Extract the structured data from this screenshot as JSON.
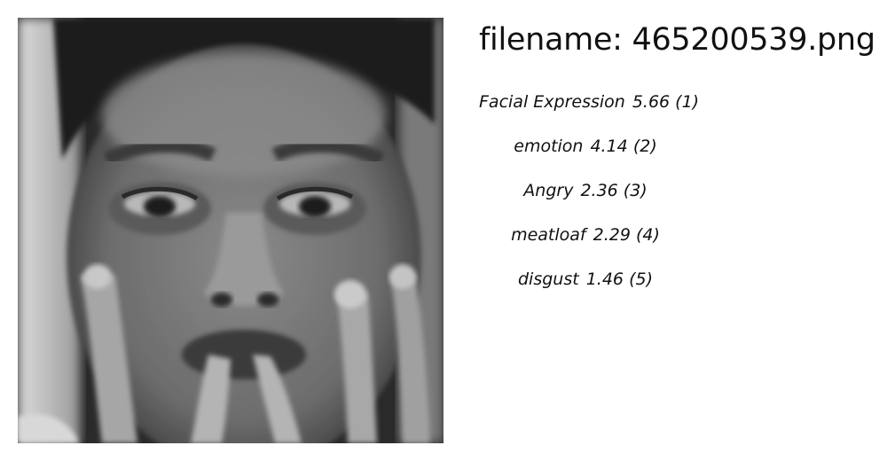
{
  "header": {
    "filename_text": "filename: 465200539.png"
  },
  "photo": {
    "icon": "face-photo"
  },
  "labels": [
    {
      "name": "Facial Expression",
      "score": "5.66",
      "rank": "(1)"
    },
    {
      "name": "emotion",
      "score": "4.14",
      "rank": "(2)"
    },
    {
      "name": "Angry",
      "score": "2.36",
      "rank": "(3)"
    },
    {
      "name": "meatloaf",
      "score": "2.29",
      "rank": "(4)"
    },
    {
      "name": "disgust",
      "score": "1.46",
      "rank": "(5)"
    }
  ]
}
